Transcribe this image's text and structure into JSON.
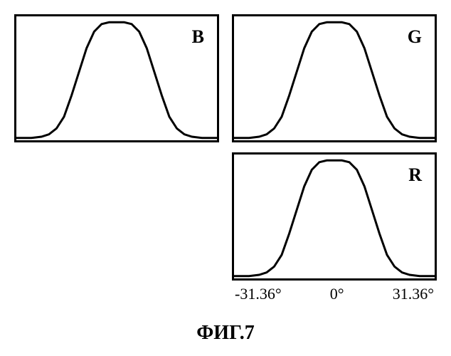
{
  "figure": {
    "caption": "ФИГ.7",
    "panels": {
      "B": {
        "label": "B",
        "row": 0,
        "col": 0,
        "curve_color": "#000000",
        "line_width": 3,
        "border_color": "#000000",
        "border_width": 3,
        "background": "#ffffff",
        "label_fontsize": 26,
        "xlim": [
          -40,
          40
        ],
        "ylim": [
          0,
          1.05
        ],
        "points": [
          [
            -40,
            0.02
          ],
          [
            -34,
            0.02
          ],
          [
            -30,
            0.03
          ],
          [
            -27,
            0.05
          ],
          [
            -24,
            0.1
          ],
          [
            -21,
            0.2
          ],
          [
            -18,
            0.38
          ],
          [
            -15,
            0.58
          ],
          [
            -12,
            0.78
          ],
          [
            -9,
            0.92
          ],
          [
            -6,
            0.985
          ],
          [
            -3,
            1.0
          ],
          [
            0,
            1.0
          ],
          [
            3,
            1.0
          ],
          [
            6,
            0.985
          ],
          [
            9,
            0.92
          ],
          [
            12,
            0.78
          ],
          [
            15,
            0.58
          ],
          [
            18,
            0.38
          ],
          [
            21,
            0.2
          ],
          [
            24,
            0.1
          ],
          [
            27,
            0.05
          ],
          [
            30,
            0.03
          ],
          [
            34,
            0.02
          ],
          [
            40,
            0.02
          ]
        ]
      },
      "G": {
        "label": "G",
        "row": 0,
        "col": 1,
        "curve_color": "#000000",
        "line_width": 3,
        "border_color": "#000000",
        "border_width": 3,
        "background": "#ffffff",
        "label_fontsize": 26,
        "xlim": [
          -40,
          40
        ],
        "ylim": [
          0,
          1.05
        ],
        "points": [
          [
            -40,
            0.02
          ],
          [
            -34,
            0.02
          ],
          [
            -30,
            0.03
          ],
          [
            -27,
            0.05
          ],
          [
            -24,
            0.1
          ],
          [
            -21,
            0.2
          ],
          [
            -18,
            0.38
          ],
          [
            -15,
            0.58
          ],
          [
            -12,
            0.78
          ],
          [
            -9,
            0.92
          ],
          [
            -6,
            0.985
          ],
          [
            -3,
            1.0
          ],
          [
            0,
            1.0
          ],
          [
            3,
            1.0
          ],
          [
            6,
            0.985
          ],
          [
            9,
            0.92
          ],
          [
            12,
            0.78
          ],
          [
            15,
            0.58
          ],
          [
            18,
            0.38
          ],
          [
            21,
            0.2
          ],
          [
            24,
            0.1
          ],
          [
            27,
            0.05
          ],
          [
            30,
            0.03
          ],
          [
            34,
            0.02
          ],
          [
            40,
            0.02
          ]
        ]
      },
      "R": {
        "label": "R",
        "row": 1,
        "col": 1,
        "curve_color": "#000000",
        "line_width": 3,
        "border_color": "#000000",
        "border_width": 3,
        "background": "#ffffff",
        "label_fontsize": 26,
        "xlim": [
          -40,
          40
        ],
        "ylim": [
          0,
          1.05
        ],
        "points": [
          [
            -40,
            0.02
          ],
          [
            -34,
            0.02
          ],
          [
            -30,
            0.03
          ],
          [
            -27,
            0.05
          ],
          [
            -24,
            0.1
          ],
          [
            -21,
            0.2
          ],
          [
            -18,
            0.38
          ],
          [
            -15,
            0.58
          ],
          [
            -12,
            0.78
          ],
          [
            -9,
            0.92
          ],
          [
            -6,
            0.985
          ],
          [
            -3,
            1.0
          ],
          [
            0,
            1.0
          ],
          [
            3,
            1.0
          ],
          [
            6,
            0.985
          ],
          [
            9,
            0.92
          ],
          [
            12,
            0.78
          ],
          [
            15,
            0.58
          ],
          [
            18,
            0.38
          ],
          [
            21,
            0.2
          ],
          [
            24,
            0.1
          ],
          [
            27,
            0.05
          ],
          [
            30,
            0.03
          ],
          [
            34,
            0.02
          ],
          [
            40,
            0.02
          ]
        ],
        "xticks": [
          "-31.36°",
          "0°",
          "31.36°"
        ],
        "xtick_fontsize": 22
      }
    }
  }
}
